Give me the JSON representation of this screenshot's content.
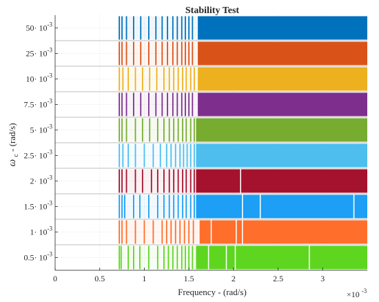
{
  "chart_data": {
    "type": "heatmap",
    "title": "Stability Test",
    "xlabel": "Frequency - (rad/s)",
    "ylabel_symbol": "ω",
    "ylabel_subscript": "c",
    "ylabel_rest": " - (rad/s)",
    "x_exponent_label": "×10",
    "x_exponent_power": "-3",
    "xlim": [
      0,
      3.5
    ],
    "xticks": [
      "0",
      "0.5",
      "1",
      "1.5",
      "2",
      "2.5",
      "3"
    ],
    "xtick_values": [
      0,
      0.5,
      1,
      1.5,
      2,
      2.5,
      3
    ],
    "grid": true,
    "categories": [
      "0.5· 10",
      "1· 10",
      "1.5· 10",
      "2· 10",
      "2.5· 10",
      "5· 10",
      "7.5· 10",
      "10· 10",
      "25· 10",
      "50· 10"
    ],
    "category_exponent": "-3",
    "stable_from": [
      1.58,
      1.62,
      1.58,
      1.58,
      1.58,
      1.58,
      1.6,
      1.6,
      1.6,
      1.6
    ],
    "series": [
      {
        "color": "#5ED620",
        "lines": [
          0.72,
          0.74,
          0.82,
          0.88,
          0.95,
          1.05,
          1.15,
          1.22,
          1.27,
          1.32,
          1.37,
          1.42,
          1.46,
          1.5,
          1.54,
          1.72,
          1.92,
          2.02,
          2.85
        ]
      },
      {
        "color": "#FF6E2A",
        "lines": [
          0.72,
          0.75,
          0.8,
          0.9,
          1.0,
          1.1,
          1.2,
          1.25,
          1.3,
          1.35,
          1.4,
          1.45,
          1.5,
          1.55,
          1.75,
          2.03,
          2.1
        ]
      },
      {
        "color": "#1C9FF4",
        "lines": [
          0.72,
          0.75,
          0.78,
          0.88,
          0.95,
          1.05,
          1.15,
          1.22,
          1.28,
          1.33,
          1.38,
          1.43,
          1.47,
          1.52,
          1.56,
          2.1,
          2.3,
          3.35
        ]
      },
      {
        "color": "#A5122E",
        "lines": [
          0.72,
          0.75,
          0.8,
          0.9,
          0.98,
          1.08,
          1.15,
          1.22,
          1.28,
          1.33,
          1.38,
          1.43,
          1.47,
          1.52,
          1.56,
          2.08
        ]
      },
      {
        "color": "#4DBEEE",
        "lines": [
          0.72,
          0.76,
          0.82,
          0.9,
          1.0,
          1.1,
          1.18,
          1.25,
          1.3,
          1.35,
          1.4,
          1.44,
          1.48,
          1.52,
          1.56
        ]
      },
      {
        "color": "#77AC30",
        "lines": [
          0.72,
          0.75,
          0.8,
          0.9,
          0.98,
          1.06,
          1.15,
          1.22,
          1.28,
          1.33,
          1.38,
          1.43,
          1.47,
          1.52,
          1.56
        ]
      },
      {
        "color": "#7E2F8E",
        "lines": [
          0.72,
          0.75,
          0.8,
          0.88,
          0.96,
          1.05,
          1.13,
          1.2,
          1.26,
          1.32,
          1.37,
          1.42,
          1.46,
          1.5,
          1.54
        ]
      },
      {
        "color": "#EDB120",
        "lines": [
          0.72,
          0.76,
          0.82,
          0.9,
          0.98,
          1.06,
          1.14,
          1.22,
          1.28,
          1.33,
          1.38,
          1.43,
          1.47,
          1.52,
          1.56
        ]
      },
      {
        "color": "#D95319",
        "lines": [
          0.72,
          0.75,
          0.8,
          0.88,
          0.96,
          1.05,
          1.13,
          1.2,
          1.26,
          1.32,
          1.37,
          1.42,
          1.46,
          1.5,
          1.54
        ]
      },
      {
        "color": "#0072BD",
        "lines": [
          0.72,
          0.75,
          0.8,
          0.88,
          0.96,
          1.05,
          1.13,
          1.2,
          1.26,
          1.32,
          1.37,
          1.42,
          1.46,
          1.5,
          1.54
        ]
      }
    ]
  }
}
